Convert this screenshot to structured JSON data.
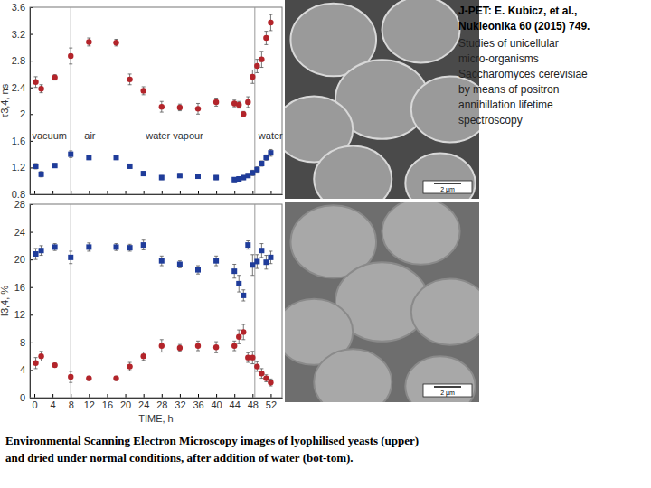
{
  "chart_data": [
    {
      "type": "scatter",
      "ylabel": "τ3,4, ns",
      "x": [
        0.3,
        1.5,
        4.5,
        8,
        12,
        18,
        21,
        24,
        28,
        32,
        36,
        40,
        44,
        45,
        46,
        47,
        48,
        49,
        50,
        51,
        52
      ],
      "xlim": [
        -1,
        54.5
      ],
      "xticks": [
        0,
        4,
        8,
        12,
        16,
        20,
        24,
        28,
        32,
        36,
        40,
        44,
        48,
        52
      ],
      "ylim": [
        0.8,
        3.6
      ],
      "yticks": [
        0.8,
        1.2,
        1.6,
        2,
        2.4,
        2.8,
        3.2,
        3.6
      ],
      "tick_labels": "y",
      "grid": false,
      "vlines": [
        8,
        48.5
      ],
      "annotations": [
        {
          "text": "vacuum",
          "x": -0.5,
          "y": 1.62
        },
        {
          "text": "air",
          "x": 11,
          "y": 1.62
        },
        {
          "text": "water vapour",
          "x": 24.5,
          "y": 1.62
        },
        {
          "text": "water",
          "x": 49.3,
          "y": 1.62
        }
      ],
      "series": [
        {
          "color": "#b3242a",
          "marker": "circle",
          "values": [
            2.48,
            2.38,
            2.55,
            2.87,
            3.08,
            3.07,
            2.52,
            2.35,
            2.11,
            2.1,
            2.08,
            2.18,
            2.16,
            2.14,
            2.0,
            2.18,
            2.56,
            2.72,
            2.82,
            3.14,
            3.37
          ],
          "errors": [
            0.08,
            0.06,
            0.04,
            0.12,
            0.06,
            0.05,
            0.08,
            0.06,
            0.08,
            0.05,
            0.08,
            0.06,
            0.05,
            0.05,
            0.04,
            0.08,
            0.1,
            0.1,
            0.12,
            0.1,
            0.12
          ]
        },
        {
          "color": "#1f3c9a",
          "marker": "square",
          "values": [
            1.22,
            1.1,
            1.23,
            1.4,
            1.35,
            1.35,
            1.22,
            1.11,
            1.05,
            1.08,
            1.07,
            1.05,
            1.02,
            1.03,
            1.05,
            1.08,
            1.12,
            1.17,
            1.26,
            1.35,
            1.42
          ],
          "errors": [
            0.04,
            0.04,
            0.03,
            0.05,
            0.03,
            0.03,
            0.03,
            0.03,
            0.03,
            0.03,
            0.03,
            0.03,
            0.03,
            0.03,
            0.03,
            0.03,
            0.04,
            0.04,
            0.04,
            0.04,
            0.05
          ]
        }
      ]
    },
    {
      "type": "scatter",
      "xlabel": "TIME, h",
      "ylabel": "I3,4, %",
      "x": [
        0.3,
        1.5,
        4.5,
        8,
        12,
        18,
        21,
        24,
        28,
        32,
        36,
        40,
        44,
        45,
        46,
        47,
        48,
        49,
        50,
        51,
        52
      ],
      "xlim": [
        -1,
        54.5
      ],
      "xticks": [
        0,
        4,
        8,
        12,
        16,
        20,
        24,
        28,
        32,
        36,
        40,
        44,
        48,
        52
      ],
      "ylim": [
        0,
        28
      ],
      "yticks": [
        0,
        4,
        8,
        12,
        16,
        20,
        24,
        28
      ],
      "grid": false,
      "vlines": [
        8,
        48.5
      ],
      "series": [
        {
          "color": "#1f3c9a",
          "marker": "square",
          "values": [
            20.8,
            21.3,
            21.8,
            20.3,
            21.8,
            21.8,
            21.7,
            22.1,
            19.8,
            19.3,
            18.5,
            19.8,
            18.3,
            16.5,
            14.8,
            22.1,
            19.2,
            19.7,
            21.3,
            19.6,
            20.3
          ],
          "errors": [
            0.8,
            0.7,
            0.5,
            0.9,
            0.6,
            0.5,
            0.5,
            0.7,
            0.7,
            0.5,
            0.6,
            0.7,
            1.0,
            1.2,
            0.8,
            0.6,
            1.5,
            1.0,
            1.0,
            1.0,
            0.9
          ]
        },
        {
          "color": "#b3242a",
          "marker": "circle",
          "values": [
            5.0,
            6.0,
            4.7,
            3.0,
            2.8,
            2.8,
            4.5,
            6.0,
            7.5,
            7.2,
            7.5,
            7.3,
            7.5,
            8.8,
            9.5,
            5.8,
            5.8,
            4.5,
            3.5,
            2.8,
            2.2
          ],
          "errors": [
            0.8,
            0.7,
            0.3,
            0.8,
            0.3,
            0.3,
            0.6,
            0.6,
            0.9,
            0.5,
            0.7,
            0.8,
            0.7,
            1.0,
            1.1,
            0.7,
            0.9,
            0.7,
            0.7,
            0.5,
            0.5
          ]
        }
      ]
    }
  ],
  "citation_lines": [
    "J-PET:  E. Kubicz, et al.,",
    "Nukleonika 60 (2015) 749."
  ],
  "description_lines": [
    "Studies of unicellular",
    "micro-organisms",
    "Saccharomyces cerevisiae",
    "by means of positron",
    "annihillation lifetime",
    "spectroscopy"
  ],
  "images": [
    {
      "scale_label": "2 µm"
    },
    {
      "scale_label": "2 µm"
    }
  ],
  "caption_lines": [
    "Environmental Scanning Electron Microscopy images of lyophilised yeasts (upper)",
    "and dried under normal conditions, after addition of water (bot-tom)."
  ]
}
